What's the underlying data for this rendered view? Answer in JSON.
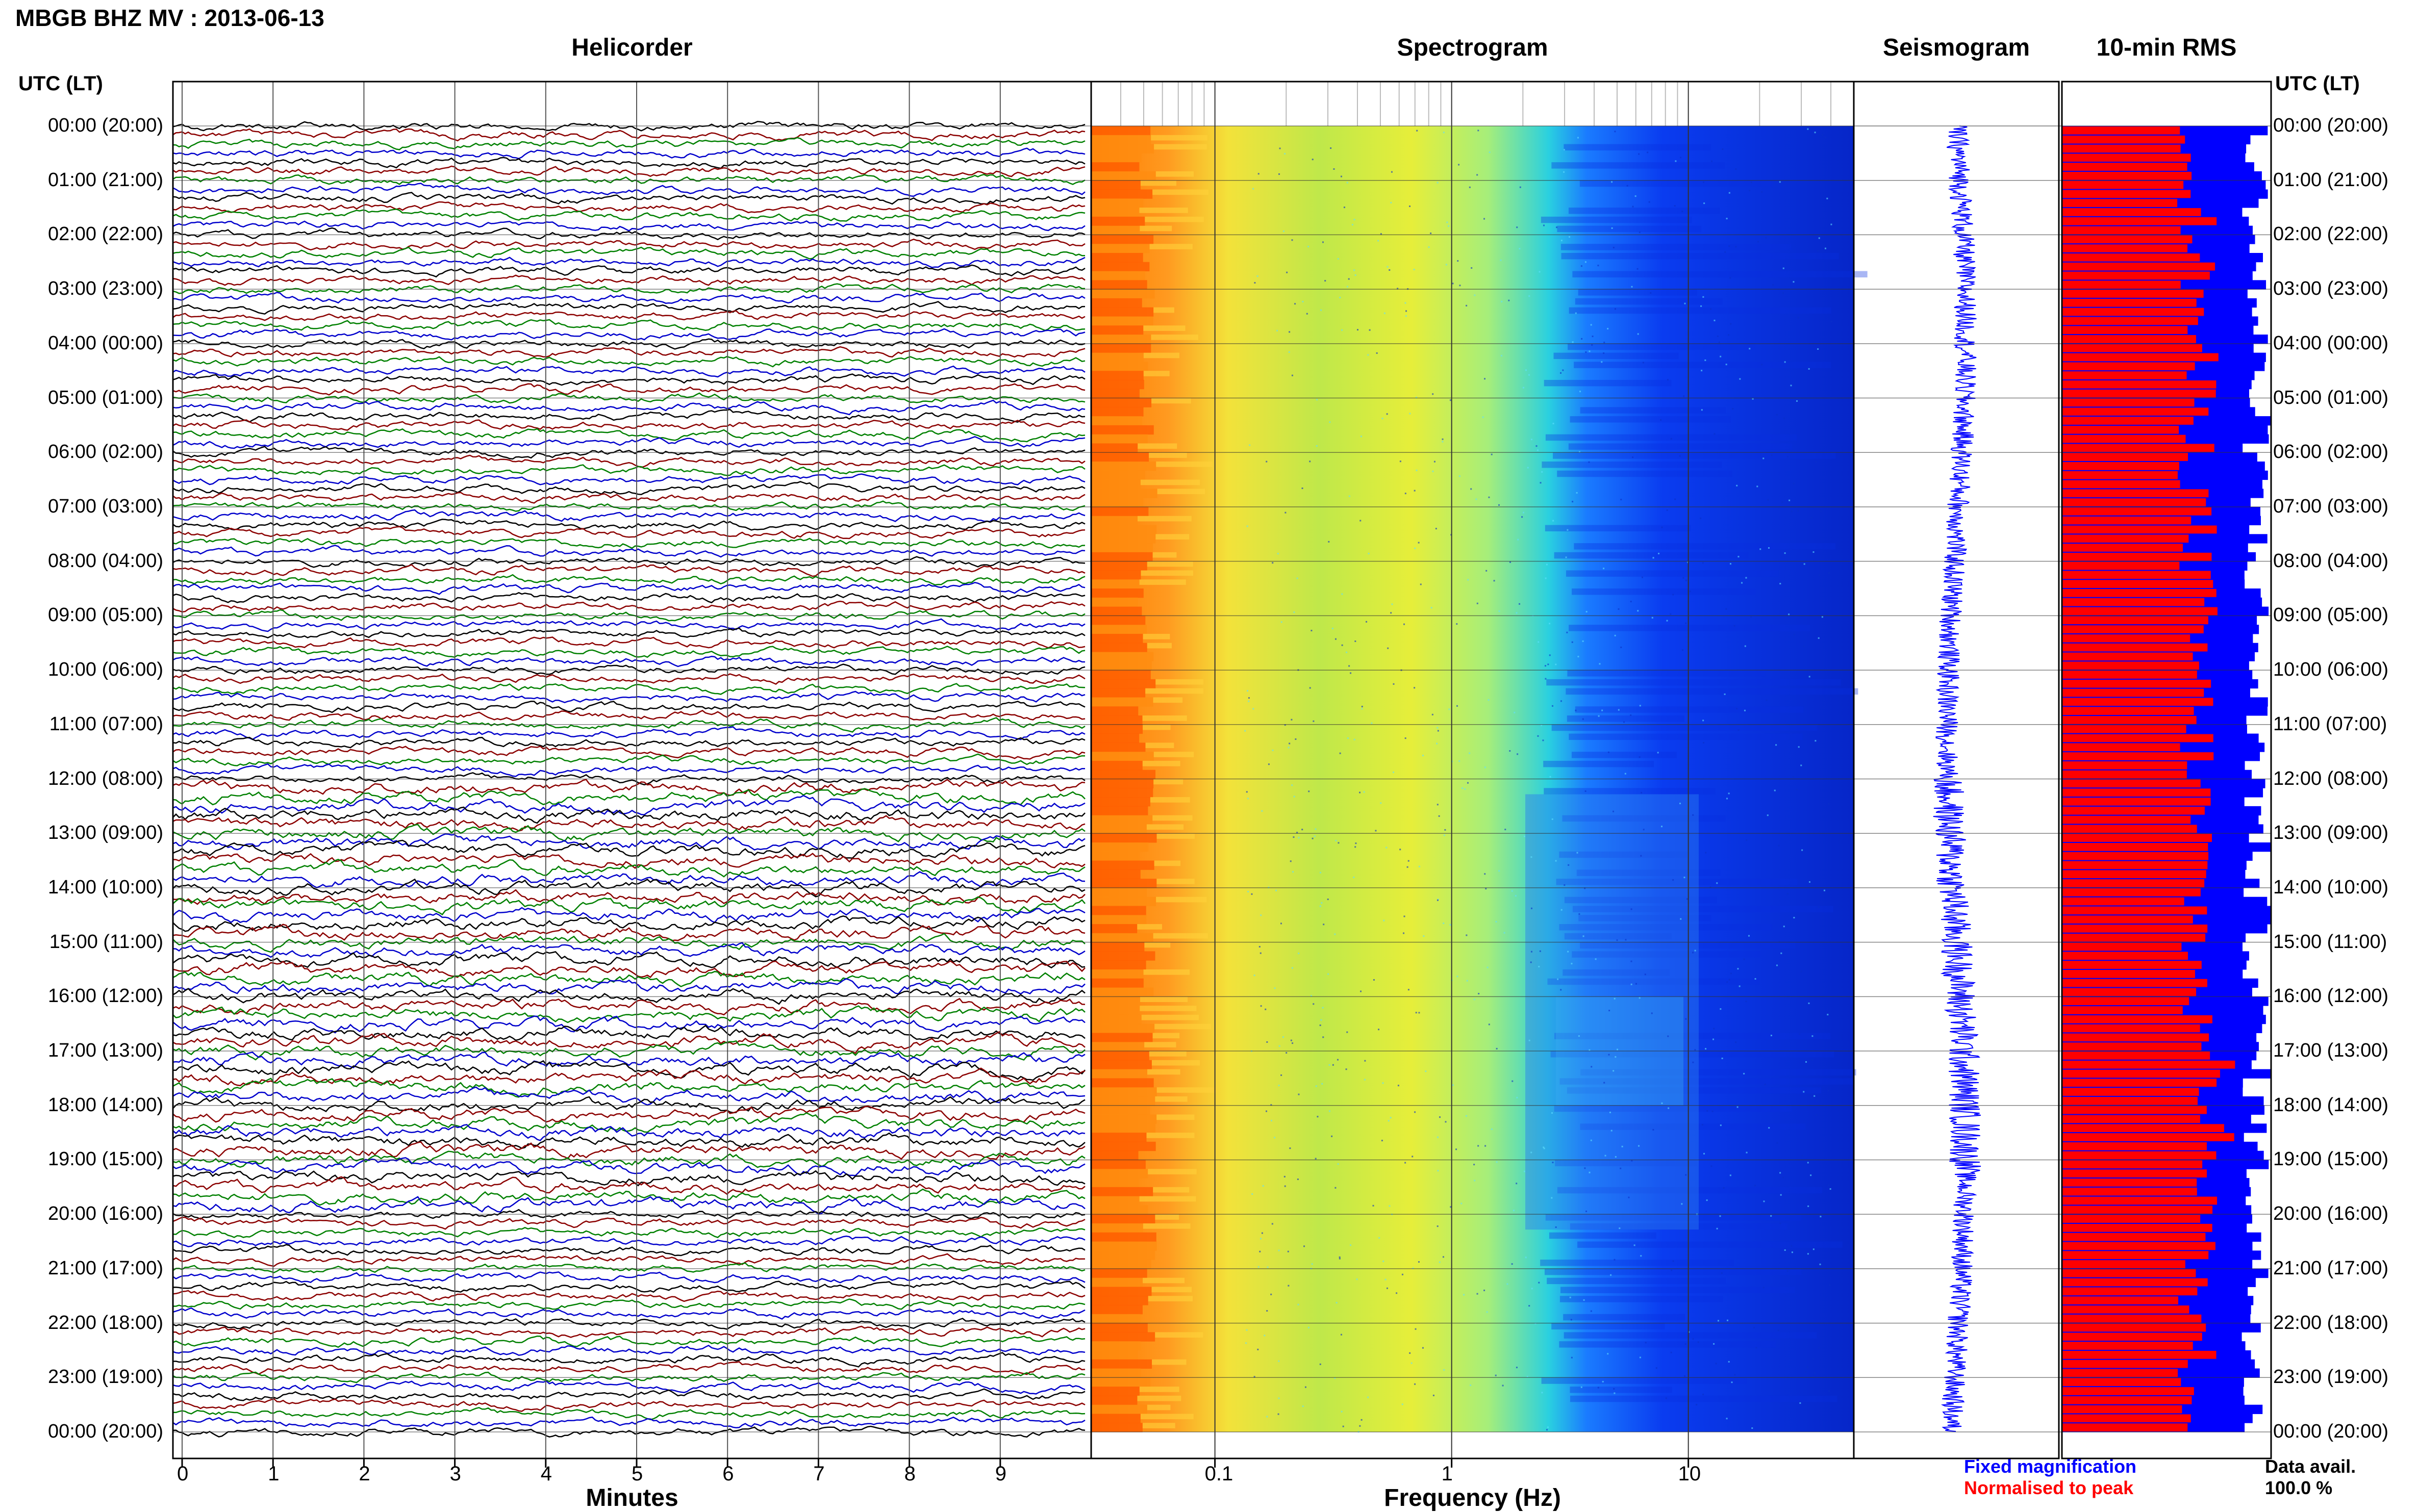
{
  "page_title": "MBGB BHZ MV : 2013-06-13",
  "time_axis_label": "UTC (LT)",
  "time_labels": [
    "00:00 (20:00)",
    "01:00 (21:00)",
    "02:00 (22:00)",
    "03:00 (23:00)",
    "04:00 (00:00)",
    "05:00 (01:00)",
    "06:00 (02:00)",
    "07:00 (03:00)",
    "08:00 (04:00)",
    "09:00 (05:00)",
    "10:00 (06:00)",
    "11:00 (07:00)",
    "12:00 (08:00)",
    "13:00 (09:00)",
    "14:00 (10:00)",
    "15:00 (11:00)",
    "16:00 (12:00)",
    "17:00 (13:00)",
    "18:00 (14:00)",
    "19:00 (15:00)",
    "20:00 (16:00)",
    "21:00 (17:00)",
    "22:00 (18:00)",
    "23:00 (19:00)",
    "00:00 (20:00)"
  ],
  "legend": {
    "fixed": "Fixed magnification",
    "normalised": "Normalised to peak",
    "data_avail_label": "Data avail.",
    "data_avail_value": "100.0 %"
  },
  "colors": {
    "trace_cycle": [
      "#000000",
      "#8b0000",
      "#008000",
      "#0000cc"
    ],
    "seismogram": "#0000ff",
    "rms_fixed": "#0000ff",
    "rms_norm": "#ff0000"
  },
  "chart_data": [
    {
      "type": "line",
      "title": "Helicorder",
      "xlabel": "Minutes",
      "x_ticks": [
        "0",
        "1",
        "2",
        "3",
        "4",
        "5",
        "6",
        "7",
        "8",
        "9"
      ],
      "xlim": [
        0,
        10
      ],
      "rows_per_hour": 6,
      "trace_color_cycle": [
        "black",
        "darkred",
        "green",
        "blue"
      ]
    },
    {
      "type": "heatmap",
      "title": "Spectrogram",
      "xlabel": "Frequency (Hz)",
      "x_scale": "log",
      "x_ticks": [
        "0.1",
        "1",
        "10"
      ],
      "xlim": [
        0.03,
        50
      ],
      "rows": 144
    },
    {
      "type": "line",
      "title": "Seismogram",
      "orientation": "vertical"
    },
    {
      "type": "bar",
      "title": "10-min RMS",
      "orientation": "horizontal",
      "bins": 144,
      "series": [
        {
          "name": "Fixed magnification",
          "color": "#0000ff"
        },
        {
          "name": "Normalised to peak",
          "color": "#ff0000"
        }
      ],
      "data_availability_percent": 100.0
    }
  ]
}
